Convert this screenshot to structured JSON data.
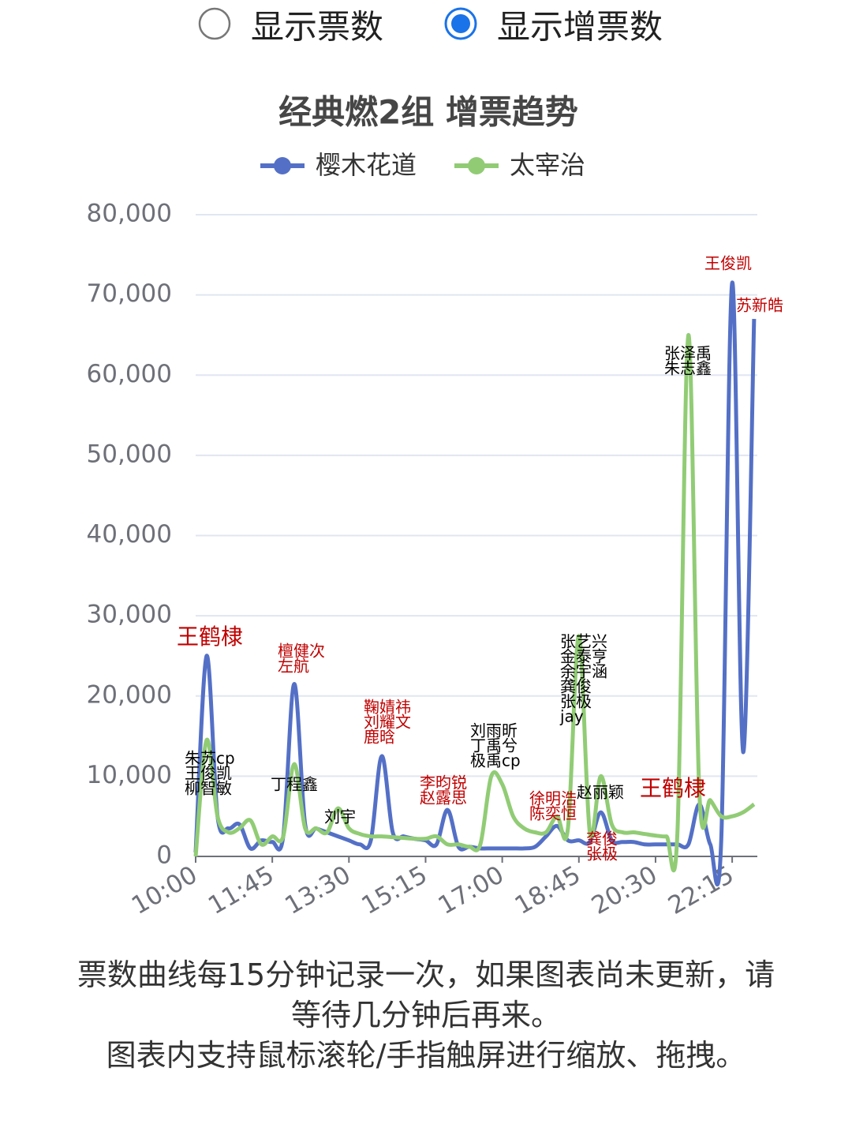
{
  "radio": {
    "options": [
      {
        "label": "显示票数",
        "checked": false
      },
      {
        "label": "显示增票数",
        "checked": true
      }
    ]
  },
  "chart_data": {
    "type": "line",
    "title": "经典燃2组 增票趋势",
    "categories": [
      "10:00",
      null,
      null,
      null,
      null,
      null,
      null,
      "11:45",
      null,
      null,
      null,
      null,
      null,
      null,
      "13:30",
      null,
      null,
      null,
      null,
      null,
      null,
      "15:15",
      null,
      null,
      null,
      null,
      null,
      null,
      "17:00",
      null,
      null,
      null,
      null,
      null,
      null,
      "18:45",
      null,
      null,
      null,
      null,
      null,
      null,
      "20:30",
      null,
      null,
      null,
      null,
      null,
      null,
      "22:15",
      null,
      null
    ],
    "series": [
      {
        "name": "樱木花道",
        "color": "#5470c6",
        "values": [
          500,
          25000,
          5000,
          3500,
          4000,
          1000,
          2000,
          1800,
          2500,
          21500,
          4000,
          3500,
          3000,
          2500,
          2000,
          1500,
          2000,
          12500,
          3000,
          2500,
          2200,
          2000,
          1500,
          5800,
          1200,
          1200,
          1000,
          1000,
          1000,
          1000,
          1000,
          1200,
          2500,
          3800,
          2000,
          2000,
          1800,
          5500,
          2000,
          1800,
          1800,
          1500,
          1500,
          1500,
          1500,
          1500,
          6500,
          1500,
          2000,
          71500,
          13000,
          67000
        ]
      },
      {
        "name": "太宰治",
        "color": "#91cc75",
        "values": [
          0,
          14500,
          5000,
          3000,
          3500,
          4500,
          1500,
          2500,
          2500,
          11500,
          3500,
          3500,
          3000,
          6000,
          3500,
          2800,
          2500,
          2500,
          2400,
          2300,
          2200,
          2200,
          2500,
          1500,
          1500,
          1200,
          1500,
          10000,
          9000,
          5000,
          3500,
          3000,
          3000,
          5000,
          3500,
          27500,
          3000,
          10000,
          4000,
          3000,
          3000,
          2800,
          2600,
          2500,
          3000,
          65000,
          8000,
          7000,
          5000,
          5000,
          5500,
          6500
        ]
      }
    ],
    "ylim": [
      0,
      80000
    ],
    "yticks": [
      0,
      {
        "value": 10000,
        "label": "10,000"
      },
      {
        "value": 20000,
        "label": "20,000"
      },
      {
        "value": 30000,
        "label": "30,000"
      },
      {
        "value": 40000,
        "label": "40,000"
      },
      {
        "value": 50000,
        "label": "50,000"
      },
      {
        "value": 60000,
        "label": "60,000"
      },
      {
        "value": 70000,
        "label": "70,000"
      },
      {
        "value": 80000,
        "label": "80,000"
      }
    ],
    "grid": true,
    "annotations": [
      {
        "lines": [
          "王鹤棣"
        ],
        "color": "#c00000"
      },
      {
        "lines": [
          "朱苏cp",
          "王俊凯",
          "柳智敏"
        ],
        "color": "#000000"
      },
      {
        "lines": [
          "檀健次",
          "左航"
        ],
        "color": "#c00000"
      },
      {
        "lines": [
          "丁程鑫"
        ],
        "color": "#000000"
      },
      {
        "lines": [
          "刘宇"
        ],
        "color": "#000000"
      },
      {
        "lines": [
          "鞠婧祎",
          "刘耀文",
          "鹿晗"
        ],
        "color": "#c00000"
      },
      {
        "lines": [
          "李昀锐",
          "赵露思"
        ],
        "color": "#c00000"
      },
      {
        "lines": [
          "刘雨昕",
          "丁禹兮",
          "极禹cp"
        ],
        "color": "#000000"
      },
      {
        "lines": [
          "徐明浩",
          "陈奕恒"
        ],
        "color": "#c00000"
      },
      {
        "lines": [
          "张艺兴",
          "金泰亨",
          "余宇涵",
          "龚俊",
          "张极",
          "jay"
        ],
        "color": "#000000"
      },
      {
        "lines": [
          "赵丽颖"
        ],
        "color": "#000000"
      },
      {
        "lines": [
          "龚俊",
          "张极"
        ],
        "color": "#c00000"
      },
      {
        "lines": [
          "张泽禹",
          "朱志鑫"
        ],
        "color": "#000000"
      },
      {
        "lines": [
          "王鹤棣"
        ],
        "color": "#c00000"
      },
      {
        "lines": [
          "王俊凯"
        ],
        "color": "#c00000"
      },
      {
        "lines": [
          "苏新皓"
        ],
        "color": "#c00000"
      }
    ]
  },
  "footer": {
    "paragraphs": [
      "票数曲线每15分钟记录一次，如果图表尚未更新，请等待几分钟后再来。",
      "图表内支持鼠标滚轮/手指触屏进行缩放、拖拽。"
    ]
  }
}
